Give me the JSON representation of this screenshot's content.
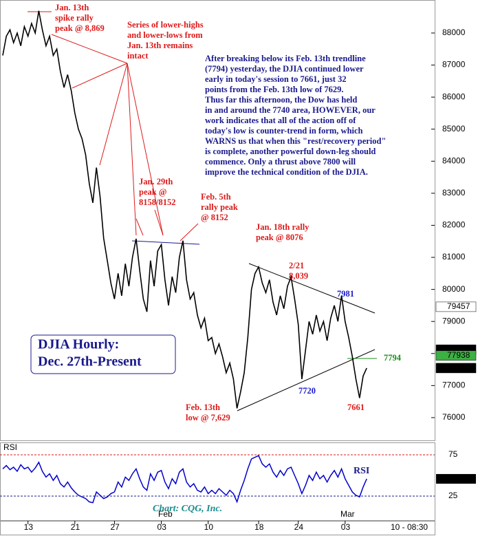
{
  "chart_data": {
    "type": "line",
    "title": "DJIA Hourly:",
    "subtitle": "Dec. 27th-Present",
    "source": "Chart: CQG, Inc.",
    "time_label": "10 - 08:30",
    "months": [
      "Feb",
      "Mar"
    ],
    "color": "#000000",
    "categories": [
      null,
      null,
      null,
      null,
      null,
      null,
      null,
      "13",
      null,
      null,
      null,
      null,
      null,
      null,
      null,
      null,
      null,
      null,
      null,
      null,
      "21",
      null,
      null,
      null,
      null,
      null,
      null,
      null,
      null,
      null,
      null,
      "27",
      null,
      null,
      null,
      null,
      null,
      null,
      null,
      null,
      null,
      null,
      null,
      null,
      "03",
      null,
      null,
      null,
      null,
      null,
      null,
      null,
      null,
      null,
      null,
      null,
      null,
      "10",
      null,
      null,
      null,
      null,
      null,
      null,
      null,
      null,
      null,
      null,
      null,
      null,
      null,
      "18",
      null,
      null,
      null,
      null,
      null,
      null,
      null,
      null,
      null,
      null,
      "24",
      null,
      null,
      null,
      null,
      null,
      null,
      null,
      null,
      null,
      null,
      null,
      null,
      "03",
      null,
      null,
      null,
      null,
      null,
      null
    ],
    "values": [
      87300,
      87900,
      88100,
      87700,
      88000,
      87600,
      88200,
      87900,
      88300,
      88000,
      88690,
      88100,
      87600,
      87900,
      87300,
      87500,
      86800,
      86300,
      86700,
      86200,
      85500,
      85000,
      84700,
      84200,
      83300,
      82700,
      83800,
      82900,
      81600,
      80900,
      80200,
      79700,
      80500,
      79800,
      80800,
      80100,
      81000,
      81580,
      80600,
      79700,
      79300,
      80900,
      80100,
      81200,
      81400,
      80300,
      79500,
      80400,
      79900,
      81000,
      81520,
      80300,
      79700,
      79900,
      79200,
      78800,
      79100,
      78400,
      78500,
      78000,
      78300,
      77900,
      77400,
      77700,
      77200,
      76290,
      76800,
      77400,
      78500,
      80000,
      80500,
      80700,
      80200,
      79900,
      80300,
      79600,
      79200,
      79800,
      79400,
      80100,
      80390,
      79700,
      78900,
      77200,
      78100,
      79000,
      78600,
      79200,
      78700,
      79000,
      78400,
      79100,
      79500,
      79000,
      79810,
      79000,
      78500,
      77900,
      77200,
      76610,
      77300,
      77546
    ],
    "ylim": [
      75290,
      89030
    ],
    "yticks": [
      76000,
      77000,
      78000,
      79000,
      80000,
      81000,
      82000,
      83000,
      84000,
      85000,
      86000,
      87000,
      88000
    ],
    "price_markers": [
      79457,
      78121,
      77938,
      77546
    ],
    "price_marker_colors": [
      "#ffffff",
      "#000000",
      "#3cb043",
      "#000000"
    ],
    "rsi": {
      "name": "RSI",
      "color": "#0000cc",
      "ylim": [
        -5,
        90
      ],
      "yticks": [
        25,
        75
      ],
      "marker": 45.88,
      "values": [
        58,
        62,
        57,
        60,
        55,
        63,
        58,
        60,
        54,
        59,
        66,
        55,
        48,
        52,
        44,
        50,
        40,
        36,
        42,
        35,
        30,
        26,
        24,
        22,
        18,
        17,
        30,
        26,
        22,
        24,
        28,
        30,
        42,
        36,
        48,
        44,
        52,
        58,
        46,
        36,
        32,
        52,
        44,
        54,
        56,
        42,
        34,
        46,
        40,
        54,
        58,
        42,
        36,
        40,
        32,
        30,
        36,
        28,
        32,
        28,
        34,
        30,
        26,
        32,
        28,
        18,
        32,
        44,
        58,
        70,
        72,
        74,
        64,
        60,
        64,
        54,
        48,
        56,
        50,
        58,
        60,
        50,
        40,
        28,
        38,
        50,
        44,
        54,
        46,
        50,
        42,
        50,
        56,
        48,
        58,
        46,
        38,
        30,
        26,
        24,
        36,
        45.88
      ]
    },
    "annotations": [
      {
        "lines": [
          "Jan. 13th",
          "spike rally",
          "peak @ 8,869"
        ],
        "color": "#dd1a1a"
      },
      {
        "lines": [
          "Series of lower-highs",
          "and lower-lows from",
          "Jan. 13th remains",
          "intact"
        ],
        "color": "#dd1a1a"
      },
      {
        "lines": [
          "After breaking below its Feb. 13th trendline",
          "(7794) yesterday, the DJIA continued lower",
          "early in today's session to 7661, just 32",
          "points from the Feb. 13th low of 7629.",
          "Thus far this afternoon, the Dow has held",
          "in and around the 7740 area, HOWEVER, our",
          "work indicates that all of the action off of",
          "today's low is counter-trend in form, which",
          "WARNS us that when this \"rest/recovery period\"",
          "is  complete, another powerful down-leg should",
          "commence. Only a thrust above 7800 will",
          "improve the technical condition of the DJIA."
        ],
        "color": "#1a1a8c"
      },
      {
        "lines": [
          "Jan. 29th",
          "peak @",
          "8158/8152"
        ],
        "color": "#dd1a1a"
      },
      {
        "lines": [
          "Feb. 5th",
          "rally peak",
          "@ 8152"
        ],
        "color": "#dd1a1a"
      },
      {
        "lines": [
          "Jan. 18th rally",
          "peak @ 8076"
        ],
        "color": "#dd1a1a"
      },
      {
        "lines": [
          "2/21",
          "8,039"
        ],
        "color": "#dd1a1a"
      },
      {
        "lines": [
          "7981"
        ],
        "color": "#1a1acc"
      },
      {
        "lines": [
          "7720"
        ],
        "color": "#1a1acc"
      },
      {
        "lines": [
          "7661"
        ],
        "color": "#dd1a1a"
      },
      {
        "lines": [
          "7794"
        ],
        "color": "#1a8c1a"
      },
      {
        "lines": [
          "Feb. 13th",
          "low @ 7,629"
        ],
        "color": "#dd1a1a"
      }
    ]
  }
}
